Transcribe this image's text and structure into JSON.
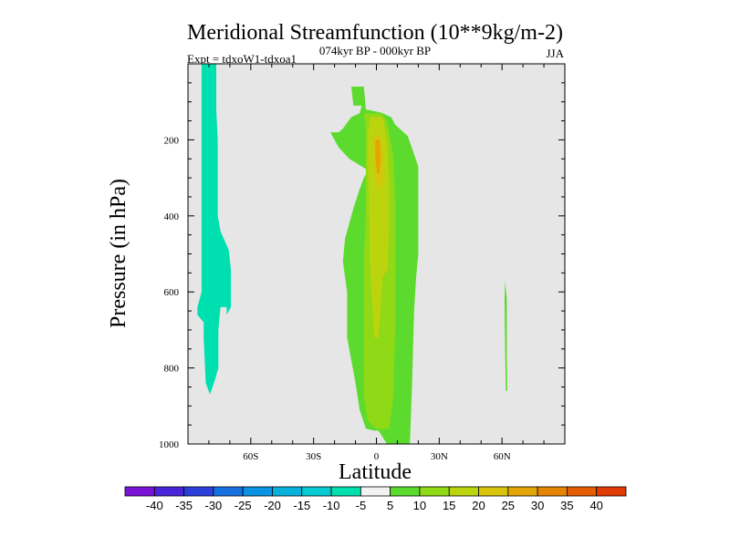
{
  "chart_data": {
    "type": "contour",
    "title": "Meridional Streamfunction (10**9kg/m-2)",
    "left_subtitle": "Expt = tdxoW1-tdxoa1",
    "center_subtitle": "074kyr BP - 000kyr BP",
    "right_subtitle": "JJA",
    "xlabel": "Latitude",
    "ylabel": "Pressure (in hPa)",
    "xlim": [
      -90,
      90
    ],
    "ylim": [
      1000,
      0
    ],
    "x_ticks": [
      {
        "value": -60,
        "label": "60S"
      },
      {
        "value": -30,
        "label": "30S"
      },
      {
        "value": 0,
        "label": "0"
      },
      {
        "value": 30,
        "label": "30N"
      },
      {
        "value": 60,
        "label": "60N"
      }
    ],
    "y_ticks": [
      {
        "value": 200,
        "label": "200"
      },
      {
        "value": 400,
        "label": "400"
      },
      {
        "value": 600,
        "label": "600"
      },
      {
        "value": 800,
        "label": "800"
      },
      {
        "value": 1000,
        "label": "1000"
      }
    ],
    "background_color": "#e6e6e6",
    "colorbar": {
      "labels": [
        "-40",
        "-35",
        "-30",
        "-25",
        "-20",
        "-15",
        "-10",
        "-5",
        "5",
        "10",
        "15",
        "20",
        "25",
        "30",
        "35",
        "40"
      ],
      "colors": [
        "#7b13d6",
        "#4a24d8",
        "#2c3fd9",
        "#1670e0",
        "#0a93e2",
        "#08b0de",
        "#05cad2",
        "#00dfb0",
        "#f2f2f2",
        "#5cdb2e",
        "#8fd916",
        "#bcd40e",
        "#d8c40a",
        "#e2a505",
        "#e58303",
        "#e55d02",
        "#e03a04"
      ]
    },
    "regions": [
      {
        "name": "negative-cell-high-latitude-south",
        "level": -10,
        "color": "#00dfb0",
        "points": [
          [
            -83.5,
            0
          ],
          [
            -76.5,
            0
          ],
          [
            -76.5,
            120
          ],
          [
            -75.8,
            200
          ],
          [
            -75.8,
            400
          ],
          [
            -74.5,
            440
          ],
          [
            -70.5,
            490
          ],
          [
            -69.5,
            540
          ],
          [
            -69.5,
            640
          ],
          [
            -71.5,
            660
          ],
          [
            -71.5,
            640
          ],
          [
            -74.5,
            640
          ],
          [
            -75.5,
            700
          ],
          [
            -75.5,
            800
          ],
          [
            -77,
            830
          ],
          [
            -79.5,
            870
          ],
          [
            -81.5,
            840
          ],
          [
            -82.5,
            720
          ],
          [
            -82.5,
            680
          ],
          [
            -85.5,
            660
          ],
          [
            -85.5,
            640
          ],
          [
            -83.5,
            600
          ],
          [
            -83.5,
            300
          ]
        ]
      },
      {
        "name": "positive-cell-outer",
        "level": 5,
        "color": "#5cdb2e",
        "points": [
          [
            -12,
            60
          ],
          [
            -6,
            60
          ],
          [
            -5,
            120
          ],
          [
            2,
            128
          ],
          [
            7,
            140
          ],
          [
            9,
            160
          ],
          [
            15,
            190
          ],
          [
            20,
            270
          ],
          [
            20,
            500
          ],
          [
            19,
            560
          ],
          [
            18,
            650
          ],
          [
            17,
            850
          ],
          [
            16,
            1000
          ],
          [
            5,
            1000
          ],
          [
            1,
            965
          ],
          [
            -1,
            965
          ],
          [
            -5,
            960
          ],
          [
            -8,
            910
          ],
          [
            -10,
            840
          ],
          [
            -12,
            780
          ],
          [
            -14,
            720
          ],
          [
            -14,
            600
          ],
          [
            -16,
            520
          ],
          [
            -15,
            460
          ],
          [
            -13,
            420
          ],
          [
            -11,
            380
          ],
          [
            -8,
            330
          ],
          [
            -6,
            300
          ],
          [
            -4,
            280
          ],
          [
            -10,
            260
          ],
          [
            -13,
            250
          ],
          [
            -18,
            220
          ],
          [
            -22,
            180
          ],
          [
            -18,
            180
          ],
          [
            -16,
            170
          ],
          [
            -12,
            140
          ],
          [
            -8,
            130
          ],
          [
            -7,
            110
          ],
          [
            -11,
            110
          ]
        ]
      },
      {
        "name": "positive-cell-10",
        "level": 10,
        "color": "#8fd916",
        "points": [
          [
            -6,
            130
          ],
          [
            2,
            130
          ],
          [
            5,
            150
          ],
          [
            8,
            240
          ],
          [
            9,
            360
          ],
          [
            9,
            700
          ],
          [
            8,
            880
          ],
          [
            6,
            960
          ],
          [
            0,
            960
          ],
          [
            -4,
            940
          ],
          [
            -6,
            880
          ],
          [
            -6,
            500
          ],
          [
            -5,
            400
          ],
          [
            -5,
            330
          ],
          [
            -5,
            170
          ]
        ]
      },
      {
        "name": "positive-cell-15",
        "level": 15,
        "color": "#bcd40e",
        "points": [
          [
            -3,
            140
          ],
          [
            3,
            140
          ],
          [
            5,
            200
          ],
          [
            6,
            300
          ],
          [
            6,
            420
          ],
          [
            5.5,
            540
          ],
          [
            3,
            560
          ],
          [
            1,
            720
          ],
          [
            -1,
            720
          ],
          [
            -3,
            540
          ],
          [
            -3.5,
            400
          ],
          [
            -4,
            260
          ],
          [
            -4,
            180
          ]
        ]
      },
      {
        "name": "positive-cell-20",
        "level": 20,
        "color": "#d8c40a",
        "points": [
          [
            -1,
            190
          ],
          [
            2,
            190
          ],
          [
            3,
            230
          ],
          [
            3,
            300
          ],
          [
            2,
            330
          ],
          [
            1,
            330
          ],
          [
            0,
            310
          ],
          [
            -1,
            260
          ]
        ]
      },
      {
        "name": "positive-cell-25",
        "level": 25,
        "color": "#e2a505",
        "points": [
          [
            -0.5,
            200
          ],
          [
            1.5,
            200
          ],
          [
            2,
            240
          ],
          [
            1.5,
            290
          ],
          [
            0.5,
            290
          ],
          [
            -0.5,
            250
          ]
        ]
      },
      {
        "name": "positive-cell-north",
        "level": 5,
        "color": "#5cdb2e",
        "points": [
          [
            61.5,
            570
          ],
          [
            62.3,
            620
          ],
          [
            62.3,
            760
          ],
          [
            62.5,
            860
          ],
          [
            61.8,
            860
          ],
          [
            61.5,
            760
          ],
          [
            61.2,
            620
          ]
        ]
      }
    ]
  }
}
